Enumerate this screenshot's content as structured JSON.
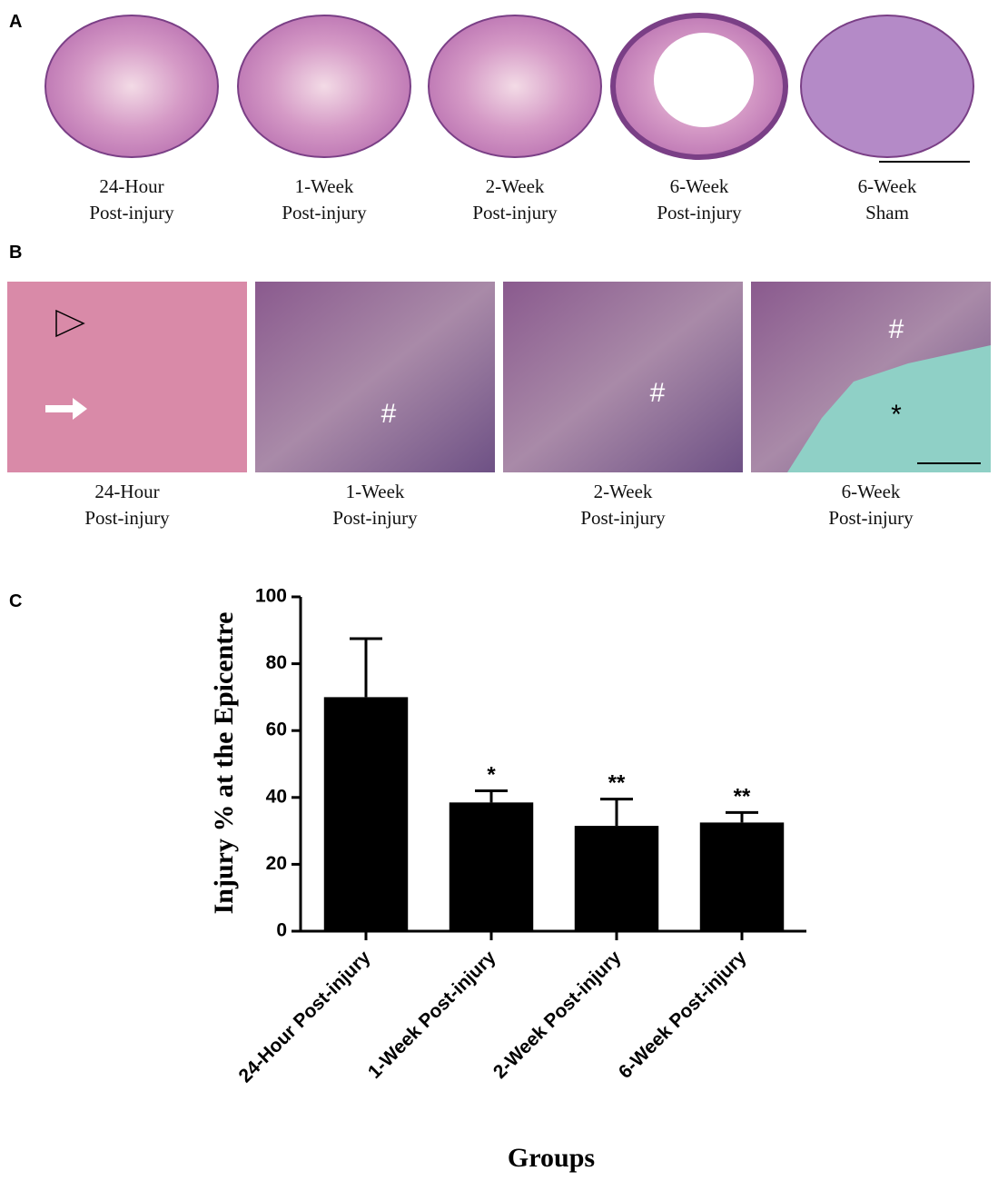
{
  "panel_a": {
    "letter": "A",
    "images": [
      {
        "caption": [
          "24-Hour",
          "Post-injury"
        ]
      },
      {
        "caption": [
          "1-Week",
          "Post-injury"
        ]
      },
      {
        "caption": [
          "2-Week",
          "Post-injury"
        ]
      },
      {
        "caption": [
          "6-Week",
          "Post-injury"
        ]
      },
      {
        "caption": [
          "6-Week",
          "Sham"
        ]
      }
    ]
  },
  "panel_b": {
    "letter": "B",
    "images": [
      {
        "caption": [
          "24-Hour",
          "Post-injury"
        ],
        "markers": []
      },
      {
        "caption": [
          "1-Week",
          "Post-injury"
        ],
        "markers": [
          "#"
        ]
      },
      {
        "caption": [
          "2-Week",
          "Post-injury"
        ],
        "markers": [
          "#"
        ]
      },
      {
        "caption": [
          "6-Week",
          "Post-injury"
        ],
        "markers": [
          "#",
          "*"
        ]
      }
    ]
  },
  "chart_data": {
    "type": "bar",
    "panel_label": "C",
    "y_label": "Injury % at the Epicentre",
    "x_label": "Groups",
    "categories": [
      "24-Hour Post-injury",
      "1-Week Post-injury",
      "2-Week Post-injury",
      "6-Week Post-injury"
    ],
    "values": [
      70,
      38.5,
      31.5,
      32.5
    ],
    "errors": [
      17.5,
      3.5,
      8,
      3
    ],
    "significance": [
      null,
      "*",
      "**",
      "**"
    ],
    "color": "#000000",
    "ylim": [
      0,
      100
    ],
    "yticks": [
      0,
      20,
      40,
      60,
      80,
      100
    ],
    "grid": false
  }
}
